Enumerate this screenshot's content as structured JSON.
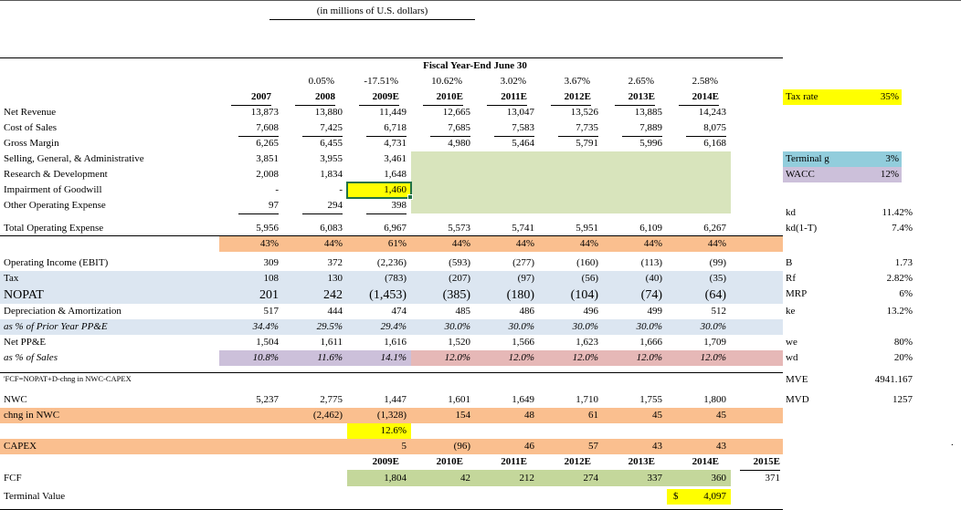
{
  "title": "(in millions of U.S. dollars)",
  "misc": {
    "dot": "."
  },
  "table": {
    "header": "Fiscal Year-End June 30",
    "columns": [
      "2007",
      "2008",
      "2009E",
      "2010E",
      "2011E",
      "2012E",
      "2013E",
      "2014E"
    ],
    "columns2": [
      "2009E",
      "2010E",
      "2011E",
      "2012E",
      "2013E",
      "2014E",
      "2015E"
    ],
    "rows": [
      {
        "name": "row-growth",
        "cls": "growth",
        "label": "",
        "cells": [
          {},
          {
            "t": "0.05%"
          },
          {
            "t": "-17.51%"
          },
          {
            "t": "10.62%"
          },
          {
            "t": "3.02%"
          },
          {
            "t": "3.67%"
          },
          {
            "t": "2.65%"
          },
          {
            "t": "2.58%"
          }
        ]
      },
      {
        "type": "years",
        "name": "row-years"
      },
      {
        "name": "row-net-revenue",
        "label": "Net Revenue",
        "label_cls": "ind1",
        "cells": [
          {
            "t": "13,873"
          },
          {
            "t": "13,880"
          },
          {
            "t": "11,449"
          },
          {
            "t": "12,665"
          },
          {
            "t": "13,047"
          },
          {
            "t": "13,526"
          },
          {
            "t": "13,885"
          },
          {
            "t": "14,243"
          }
        ]
      },
      {
        "name": "row-cost-of-sales",
        "label": "Cost of Sales",
        "label_cls": "ind1",
        "cells": [
          {
            "t": "7,608",
            "u": true
          },
          {
            "t": "7,425",
            "u": true
          },
          {
            "t": "6,718",
            "u": true
          },
          {
            "t": "7,685",
            "u": true
          },
          {
            "t": "7,583",
            "u": true
          },
          {
            "t": "7,735",
            "u": true
          },
          {
            "t": "7,889",
            "u": true
          },
          {
            "t": "8,075",
            "u": true
          }
        ]
      },
      {
        "name": "row-gross-margin",
        "label": "Gross Margin",
        "cells": [
          {
            "t": "6,265"
          },
          {
            "t": "6,455"
          },
          {
            "t": "4,731"
          },
          {
            "t": "4,980"
          },
          {
            "t": "5,464"
          },
          {
            "t": "5,791"
          },
          {
            "t": "5,996"
          },
          {
            "t": "6,168"
          }
        ]
      },
      {
        "name": "row-sga",
        "label": "Selling, General, & Administrative",
        "label_cls": "ind1",
        "cells": [
          {
            "t": "3,851"
          },
          {
            "t": "3,955"
          },
          {
            "t": "3,461"
          },
          {
            "fill": "green"
          },
          {
            "fill": "green"
          },
          {
            "fill": "green"
          },
          {
            "fill": "green"
          },
          {
            "fill": "green"
          }
        ]
      },
      {
        "name": "row-rnd",
        "label": "Research & Development",
        "label_cls": "ind1",
        "cells": [
          {
            "t": "2,008"
          },
          {
            "t": "1,834"
          },
          {
            "t": "1,648"
          },
          {
            "fill": "green"
          },
          {
            "fill": "green"
          },
          {
            "fill": "green"
          },
          {
            "fill": "green"
          },
          {
            "fill": "green"
          }
        ]
      },
      {
        "name": "row-impairment",
        "label": "Impairment of Goodwill",
        "label_cls": "ind1",
        "cells": [
          {
            "t": "-",
            "cls": "dash"
          },
          {
            "t": "-",
            "cls": "dash"
          },
          {
            "t": "1,460",
            "fill": "yellow",
            "sel": true
          },
          {
            "fill": "green"
          },
          {
            "fill": "green"
          },
          {
            "fill": "green"
          },
          {
            "fill": "green"
          },
          {
            "fill": "green"
          }
        ]
      },
      {
        "name": "row-other-opex",
        "label": "Other Operating Expense",
        "label_cls": "ind1",
        "cells": [
          {
            "t": "97",
            "u": true
          },
          {
            "t": "294",
            "u": true
          },
          {
            "t": "398",
            "u": true
          },
          {
            "fill": "green"
          },
          {
            "fill": "green"
          },
          {
            "fill": "green"
          },
          {
            "fill": "green"
          },
          {
            "fill": "green"
          }
        ]
      },
      {
        "type": "spacer",
        "h": 8
      },
      {
        "name": "row-total-opex",
        "label": "Total Operating Expense",
        "label_cls": "ind-h",
        "cls": "bline",
        "cells": [
          {
            "t": "5,956"
          },
          {
            "t": "6,083"
          },
          {
            "t": "6,967"
          },
          {
            "t": "5,573"
          },
          {
            "t": "5,741"
          },
          {
            "t": "5,951"
          },
          {
            "t": "6,109"
          },
          {
            "t": "6,267"
          }
        ]
      },
      {
        "name": "row-opex-pct",
        "label": "",
        "data_fill": "orange",
        "cells": [
          {
            "t": "43%"
          },
          {
            "t": "44%"
          },
          {
            "t": "61%"
          },
          {
            "t": "44%"
          },
          {
            "t": "44%"
          },
          {
            "t": "44%"
          },
          {
            "t": "44%"
          },
          {
            "t": "44%"
          }
        ]
      },
      {
        "type": "spacer",
        "h": 4
      },
      {
        "name": "row-ebit",
        "label": "Operating Income (EBIT)",
        "cells": [
          {
            "t": "309"
          },
          {
            "t": "372"
          },
          {
            "t": "(2,236)"
          },
          {
            "t": "(593)"
          },
          {
            "t": "(277)"
          },
          {
            "t": "(160)"
          },
          {
            "t": "(113)"
          },
          {
            "t": "(99)"
          }
        ]
      },
      {
        "name": "row-tax",
        "label": "Tax",
        "row_fill": "blue",
        "cells": [
          {
            "t": "108"
          },
          {
            "t": "130"
          },
          {
            "t": "(783)"
          },
          {
            "t": "(207)"
          },
          {
            "t": "(97)"
          },
          {
            "t": "(56)"
          },
          {
            "t": "(40)"
          },
          {
            "t": "(35)"
          }
        ]
      },
      {
        "name": "row-nopat",
        "label": "NOPAT",
        "row_fill": "blue",
        "cls": "big",
        "cells": [
          {
            "t": "201"
          },
          {
            "t": "242"
          },
          {
            "t": "(1,453)"
          },
          {
            "t": "(385)"
          },
          {
            "t": "(180)"
          },
          {
            "t": "(104)"
          },
          {
            "t": "(74)"
          },
          {
            "t": "(64)"
          }
        ]
      },
      {
        "name": "row-dep-amort",
        "label": "Depreciation & Amortization",
        "cells": [
          {
            "t": "517"
          },
          {
            "t": "444"
          },
          {
            "t": "474"
          },
          {
            "t": "485"
          },
          {
            "t": "486"
          },
          {
            "t": "496"
          },
          {
            "t": "499"
          },
          {
            "t": "512"
          }
        ]
      },
      {
        "name": "row-dep-pct",
        "label": "as % of Prior Year PP&E",
        "label_cls": "ind1 it",
        "row_fill": "blue",
        "cls": "it",
        "cells": [
          {
            "t": "34.4%"
          },
          {
            "t": "29.5%"
          },
          {
            "t": "29.4%"
          },
          {
            "t": "30.0%"
          },
          {
            "t": "30.0%"
          },
          {
            "t": "30.0%"
          },
          {
            "t": "30.0%"
          },
          {
            "t": "30.0%"
          }
        ]
      },
      {
        "name": "row-net-ppe",
        "label": "Net PP&E",
        "cells": [
          {
            "t": "1,504"
          },
          {
            "t": "1,611"
          },
          {
            "t": "1,616"
          },
          {
            "t": "1,520"
          },
          {
            "t": "1,566"
          },
          {
            "t": "1,623"
          },
          {
            "t": "1,666"
          },
          {
            "t": "1,709"
          }
        ]
      },
      {
        "name": "row-ppe-sales-pct",
        "label": "as % of Sales",
        "label_cls": "ind1 it",
        "cls": "it",
        "filler": {
          "fill": "pink"
        },
        "cells": [
          {
            "t": "10.8%",
            "fill": "purple"
          },
          {
            "t": "11.6%",
            "fill": "purple"
          },
          {
            "t": "14.1%",
            "fill": "purple"
          },
          {
            "t": "12.0%",
            "fill": "pink"
          },
          {
            "t": "12.0%",
            "fill": "pink"
          },
          {
            "t": "12.0%",
            "fill": "pink"
          },
          {
            "t": "12.0%",
            "fill": "pink"
          },
          {
            "t": "12.0%",
            "fill": "pink"
          }
        ]
      },
      {
        "type": "spacer",
        "h": 7
      },
      {
        "type": "divider"
      },
      {
        "name": "row-fcf-note",
        "label": "'FCF=NOPAT+D-chng in NWC-CAPEX",
        "cls": "tiny",
        "h": 13,
        "cells": [
          {},
          {},
          {},
          {},
          {},
          {},
          {},
          {}
        ]
      },
      {
        "type": "spacer",
        "h": 8
      },
      {
        "name": "row-nwc",
        "label": "NWC",
        "cells": [
          {
            "t": "5,237"
          },
          {
            "t": "2,775"
          },
          {
            "t": "1,447"
          },
          {
            "t": "1,601"
          },
          {
            "t": "1,649"
          },
          {
            "t": "1,710"
          },
          {
            "t": "1,755"
          },
          {
            "t": "1,800"
          }
        ]
      },
      {
        "name": "row-chng-nwc",
        "label": "chng in NWC",
        "row_fill": "orange",
        "cells": [
          {},
          {
            "t": "(2,462)"
          },
          {
            "t": "(1,328)"
          },
          {
            "t": "154"
          },
          {
            "t": "48"
          },
          {
            "t": "61"
          },
          {
            "t": "45"
          },
          {
            "t": "45"
          }
        ]
      },
      {
        "name": "row-nwc-pct",
        "label": "",
        "cells": [
          {},
          {},
          {
            "t": "12.6%",
            "fill": "yellow"
          },
          {},
          {},
          {},
          {},
          {}
        ]
      },
      {
        "name": "row-capex",
        "label": "CAPEX",
        "row_fill": "orange",
        "cells": [
          {},
          {},
          {
            "t": "5"
          },
          {
            "t": "(96)"
          },
          {
            "t": "46"
          },
          {
            "t": "57"
          },
          {
            "t": "43"
          },
          {
            "t": "43"
          }
        ]
      },
      {
        "type": "years2",
        "name": "row-years2"
      },
      {
        "name": "row-fcf",
        "label": "FCF",
        "h": 18,
        "filler": {
          "t": "371"
        },
        "cells": [
          {},
          {},
          {
            "t": "1,804",
            "fill": "green2"
          },
          {
            "t": "42",
            "fill": "green2"
          },
          {
            "t": "212",
            "fill": "green2"
          },
          {
            "t": "274",
            "fill": "green2"
          },
          {
            "t": "337",
            "fill": "green2"
          },
          {
            "t": "360",
            "fill": "green2"
          }
        ]
      },
      {
        "type": "spacer",
        "h": 3
      },
      {
        "name": "row-terminal-value",
        "label": "Terminal Value",
        "cells": [
          {},
          {},
          {},
          {},
          {},
          {},
          {},
          {
            "t": "4,097",
            "prefix": "$",
            "fill": "yellow"
          }
        ]
      }
    ]
  },
  "side": {
    "items": [
      {
        "label": "Tax rate",
        "value": "35%",
        "fill": "yellow"
      },
      {
        "label": "Terminal g",
        "value": "3%",
        "fill": "teal"
      },
      {
        "label": "WACC",
        "value": "12%",
        "fill": "purple"
      },
      {
        "label": "kd",
        "value": "11.42%"
      },
      {
        "label": "kd(1-T)",
        "value": "7.4%"
      },
      {
        "label": "B",
        "value": "1.73"
      },
      {
        "label": "Rf",
        "value": "2.82%"
      },
      {
        "label": "MRP",
        "value": "6%"
      },
      {
        "label": "ke",
        "value": "13.2%"
      },
      {
        "label": "we",
        "value": "80%"
      },
      {
        "label": "wd",
        "value": "20%"
      },
      {
        "label": "MVE",
        "value": "4941.167"
      },
      {
        "label": "MVD",
        "value": "1257"
      }
    ]
  },
  "colors": {
    "highlight_yellow": "#FFFF00",
    "band_orange": "#FABF8F",
    "band_blue": "#DCE6F1",
    "block_green": "#D8E4BC",
    "fcf_green": "#C4D79B",
    "band_purple": "#CCC0DA",
    "band_pink": "#E6B8B7",
    "band_teal": "#92CDDC",
    "selection_green": "#217346"
  }
}
